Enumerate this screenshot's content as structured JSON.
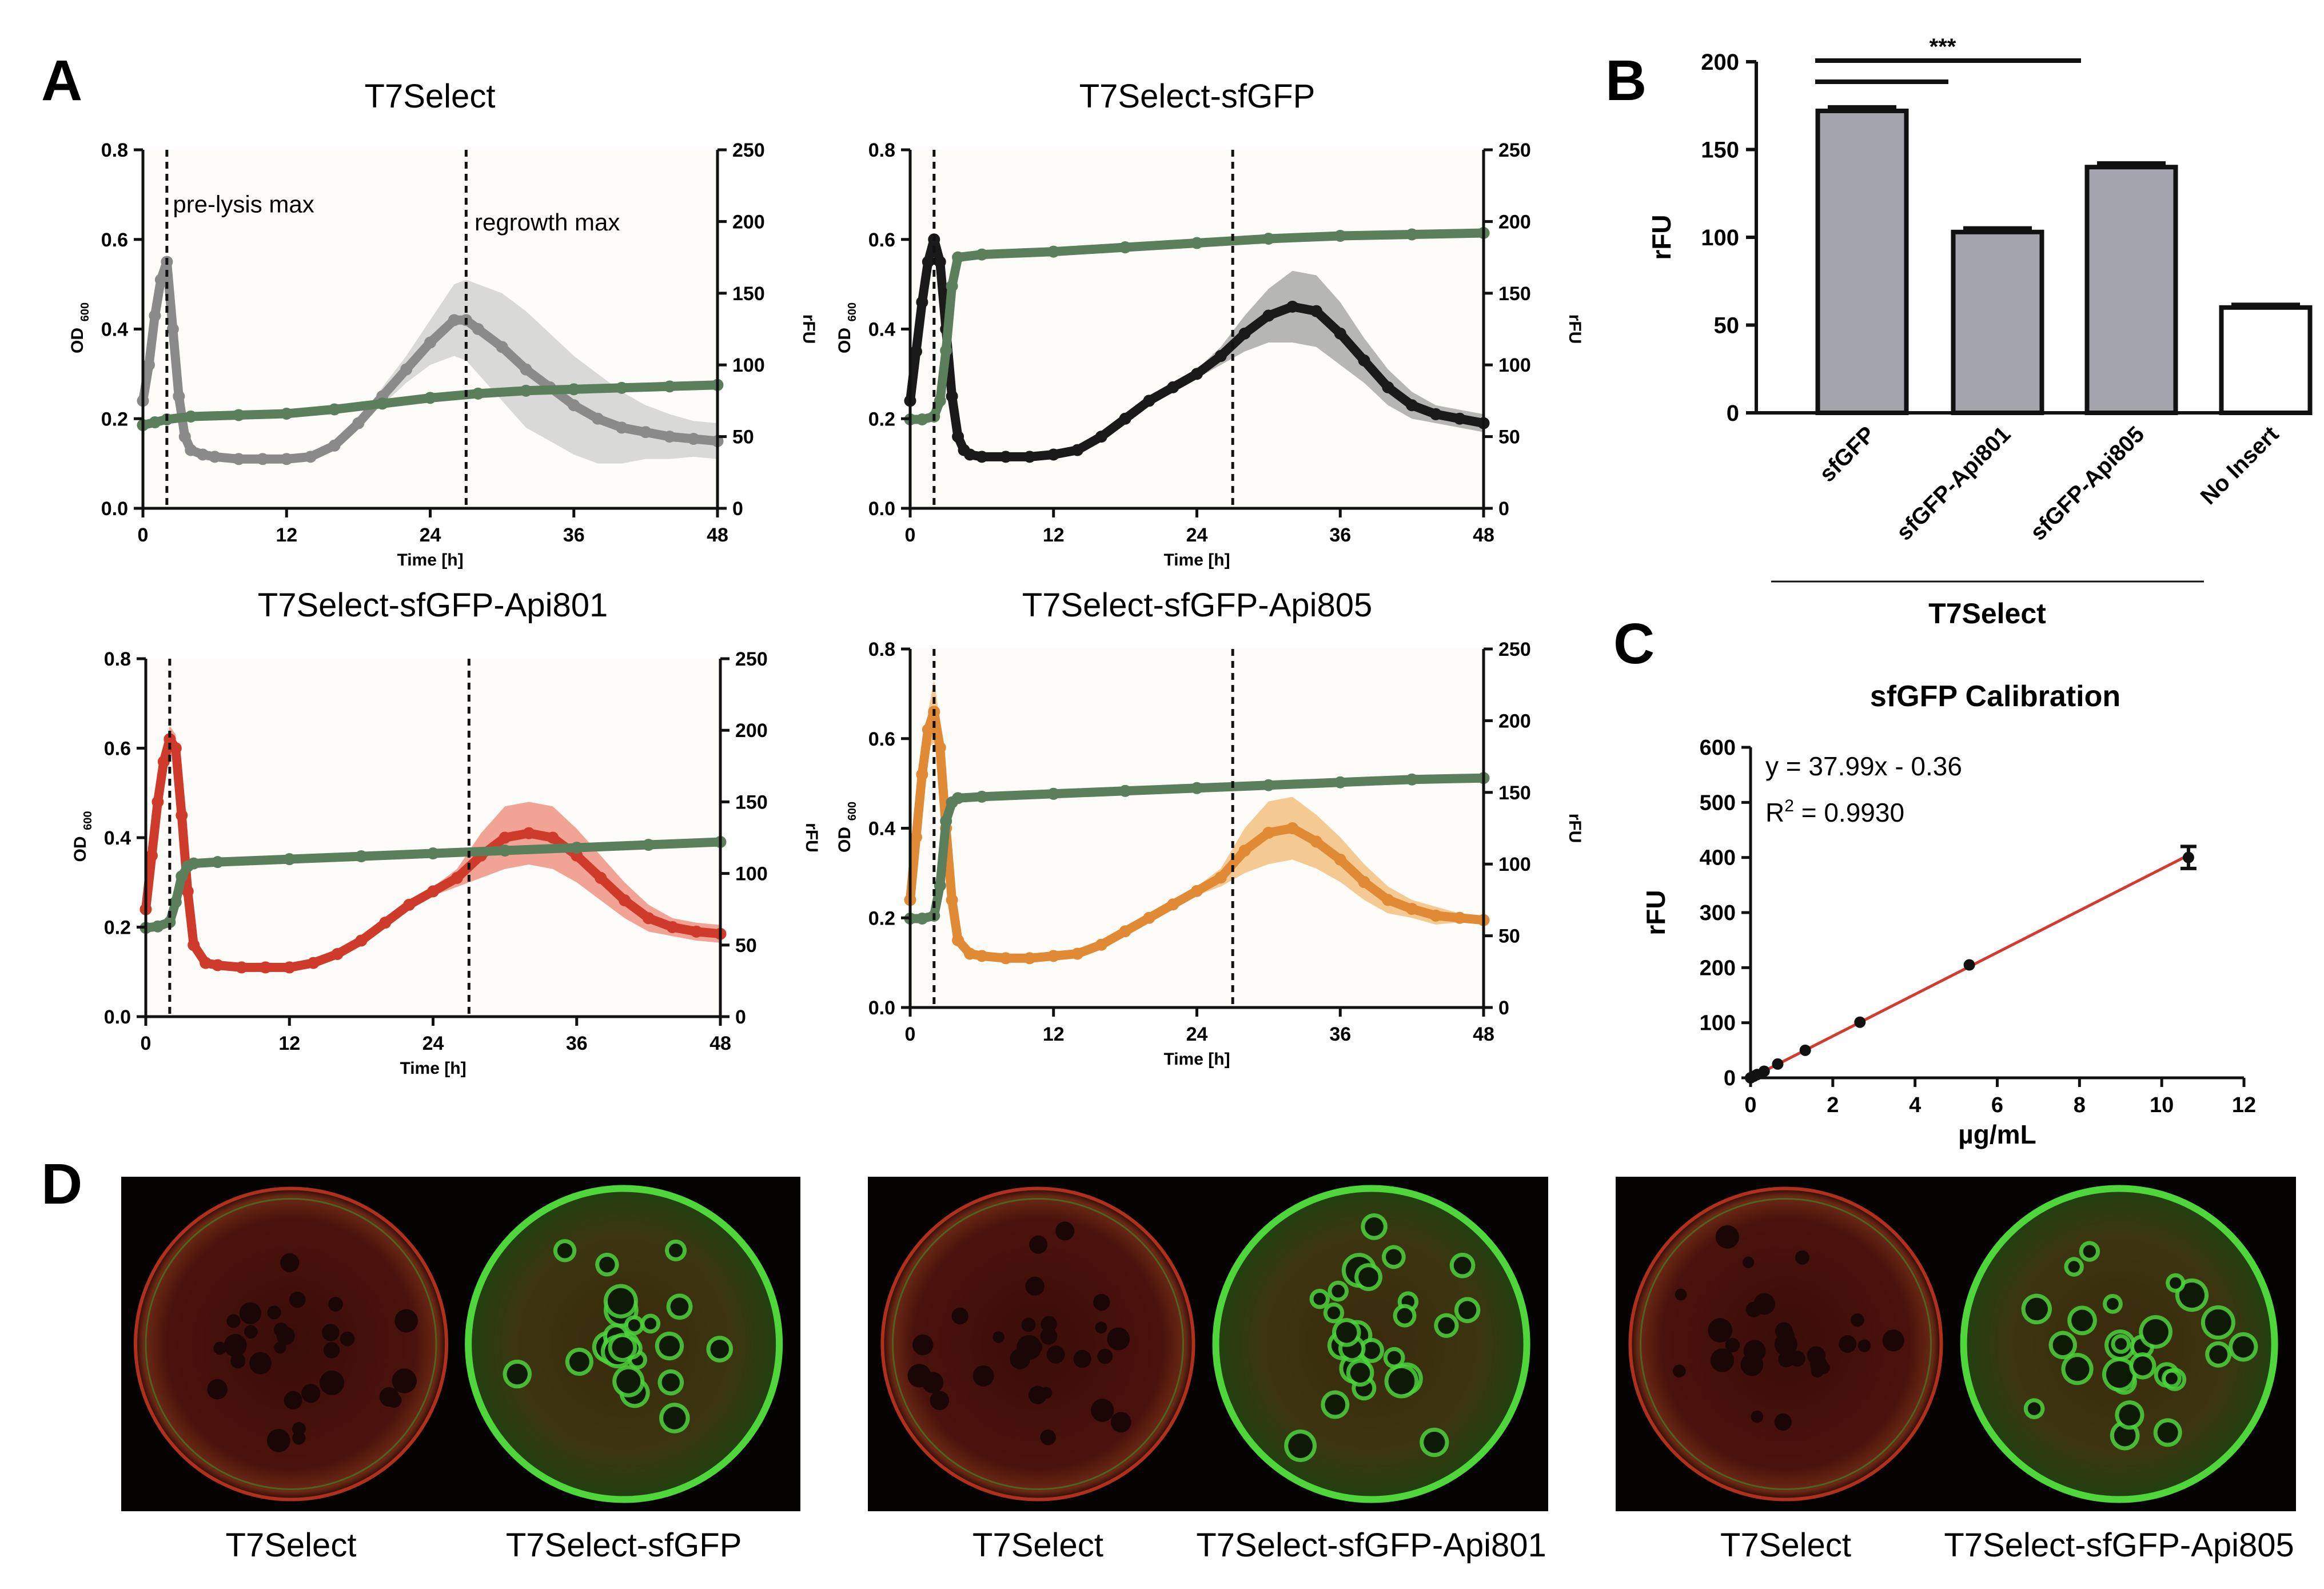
{
  "panel_labels": {
    "a": "A",
    "b": "B",
    "c": "C",
    "d": "D"
  },
  "colors": {
    "grey_od": "#8a8a8a",
    "grey_band": "#d2d2d2",
    "green_rfu": "#5b7f5b",
    "black_od": "#1a1a1a",
    "dark_band": "#a9a9a9",
    "red_od": "#cf3b2b",
    "red_band": "#ee9484",
    "red_dark": "#8a3a33",
    "orange_od": "#e08a35",
    "orange_band": "#f3bf80",
    "orange_dark": "#b87a3e",
    "bar_grey": "#a4a4ac",
    "bar_white": "#ffffff",
    "fit_line": "#d43a30"
  },
  "chart_data": [
    {
      "id": "a1",
      "type": "line",
      "title": "T7Select",
      "xlabel": "Time [h]",
      "ylabel_left": "OD",
      "ylabel_left_sub": "600",
      "ylabel_right": "rFU",
      "xlim": [
        0,
        48
      ],
      "xticks": [
        "0",
        "12",
        "24",
        "36",
        "48"
      ],
      "ylim_left": [
        0,
        0.8
      ],
      "yticks_left": [
        "0.0",
        "0.2",
        "0.4",
        "0.6",
        "0.8"
      ],
      "ylim_right": [
        0,
        250
      ],
      "yticks_right": [
        "0",
        "50",
        "100",
        "150",
        "200",
        "250"
      ],
      "vlines": [
        2,
        27
      ],
      "annotations": [
        {
          "text": "pre-lysis max",
          "x": 2.5,
          "y": 0.66
        },
        {
          "text": "regrowth max",
          "x": 27.7,
          "y": 0.62
        }
      ],
      "series": [
        {
          "axis": "left",
          "color_key": "grey_od",
          "band_key": "grey_band",
          "x": [
            0,
            0.5,
            1,
            1.5,
            2,
            2.5,
            3,
            3.5,
            4,
            5,
            6,
            8,
            10,
            12,
            14,
            16,
            18,
            20,
            22,
            24,
            26,
            27,
            28,
            30,
            32,
            34,
            36,
            38,
            40,
            42,
            44,
            46,
            48
          ],
          "y": [
            0.24,
            0.32,
            0.43,
            0.51,
            0.55,
            0.4,
            0.25,
            0.16,
            0.13,
            0.12,
            0.115,
            0.11,
            0.11,
            0.11,
            0.115,
            0.14,
            0.19,
            0.25,
            0.31,
            0.37,
            0.42,
            0.42,
            0.4,
            0.36,
            0.31,
            0.27,
            0.23,
            0.2,
            0.18,
            0.17,
            0.16,
            0.155,
            0.15
          ],
          "err": [
            0,
            0,
            0,
            0,
            0,
            0,
            0,
            0,
            0,
            0,
            0,
            0,
            0,
            0,
            0,
            0,
            0,
            0.02,
            0.03,
            0.05,
            0.08,
            0.09,
            0.1,
            0.12,
            0.13,
            0.12,
            0.11,
            0.1,
            0.08,
            0.06,
            0.05,
            0.04,
            0.04
          ]
        },
        {
          "axis": "right",
          "color_key": "green_rfu",
          "x": [
            0,
            1,
            2,
            4,
            8,
            12,
            16,
            20,
            24,
            28,
            32,
            36,
            40,
            44,
            48
          ],
          "y": [
            58,
            60,
            62,
            64,
            65,
            66,
            69,
            73,
            77,
            80,
            82,
            83,
            84,
            85,
            86
          ],
          "err": [
            0,
            0,
            0,
            0,
            0,
            0,
            0,
            0,
            0,
            0,
            0,
            0,
            0,
            0,
            0
          ]
        }
      ]
    },
    {
      "id": "a2",
      "type": "line",
      "title": "T7Select-sfGFP",
      "xlabel": "Time [h]",
      "ylabel_left": "OD",
      "ylabel_left_sub": "600",
      "ylabel_right": "rFU",
      "xlim": [
        0,
        48
      ],
      "xticks": [
        "0",
        "12",
        "24",
        "36",
        "48"
      ],
      "ylim_left": [
        0,
        0.8
      ],
      "yticks_left": [
        "0.0",
        "0.2",
        "0.4",
        "0.6",
        "0.8"
      ],
      "ylim_right": [
        0,
        250
      ],
      "yticks_right": [
        "0",
        "50",
        "100",
        "150",
        "200",
        "250"
      ],
      "vlines": [
        2,
        27
      ],
      "annotations": [],
      "series": [
        {
          "axis": "left",
          "color_key": "black_od",
          "band_key": "dark_band",
          "x": [
            0,
            0.5,
            1,
            1.5,
            2,
            2.5,
            3,
            3.5,
            4,
            4.5,
            5,
            6,
            8,
            10,
            12,
            14,
            16,
            18,
            20,
            22,
            24,
            26,
            28,
            30,
            32,
            34,
            36,
            38,
            40,
            42,
            44,
            46,
            48
          ],
          "y": [
            0.24,
            0.35,
            0.46,
            0.55,
            0.6,
            0.55,
            0.4,
            0.25,
            0.16,
            0.13,
            0.12,
            0.115,
            0.115,
            0.115,
            0.12,
            0.13,
            0.16,
            0.2,
            0.24,
            0.27,
            0.3,
            0.34,
            0.39,
            0.43,
            0.45,
            0.44,
            0.39,
            0.33,
            0.27,
            0.23,
            0.21,
            0.2,
            0.19
          ],
          "err": [
            0,
            0,
            0,
            0,
            0,
            0,
            0,
            0,
            0,
            0,
            0,
            0,
            0,
            0,
            0,
            0,
            0,
            0,
            0,
            0,
            0.01,
            0.02,
            0.04,
            0.06,
            0.08,
            0.08,
            0.07,
            0.05,
            0.04,
            0.03,
            0.02,
            0.02,
            0.02
          ]
        },
        {
          "axis": "right",
          "color_key": "green_rfu",
          "x": [
            0,
            1,
            2,
            2.5,
            3,
            3.5,
            4,
            6,
            12,
            18,
            24,
            30,
            36,
            42,
            48
          ],
          "y": [
            62,
            62,
            64,
            75,
            110,
            155,
            175,
            177,
            179,
            182,
            185,
            188,
            190,
            191,
            192
          ],
          "err": [
            0,
            0,
            0,
            0,
            0,
            0,
            0,
            0,
            0,
            0,
            0,
            0,
            0,
            0,
            0
          ]
        }
      ]
    },
    {
      "id": "a3",
      "type": "line",
      "title": "T7Select-sfGFP-Api801",
      "xlabel": "Time [h]",
      "ylabel_left": "OD",
      "ylabel_left_sub": "600",
      "ylabel_right": "rFU",
      "xlim": [
        0,
        48
      ],
      "xticks": [
        "0",
        "12",
        "24",
        "36",
        "48"
      ],
      "ylim_left": [
        0,
        0.8
      ],
      "yticks_left": [
        "0.0",
        "0.2",
        "0.4",
        "0.6",
        "0.8"
      ],
      "ylim_right": [
        0,
        250
      ],
      "yticks_right": [
        "0",
        "50",
        "100",
        "150",
        "200",
        "250"
      ],
      "vlines": [
        2,
        27
      ],
      "annotations": [],
      "series": [
        {
          "axis": "left",
          "color_key": "red_od",
          "band_key": "red_band",
          "x": [
            0,
            0.5,
            1,
            1.5,
            2,
            2.5,
            3,
            3.5,
            4,
            5,
            6,
            8,
            10,
            12,
            14,
            16,
            18,
            20,
            22,
            24,
            26,
            28,
            30,
            32,
            34,
            36,
            38,
            40,
            42,
            44,
            46,
            48
          ],
          "y": [
            0.24,
            0.36,
            0.48,
            0.57,
            0.62,
            0.6,
            0.45,
            0.28,
            0.16,
            0.12,
            0.115,
            0.11,
            0.11,
            0.11,
            0.12,
            0.14,
            0.17,
            0.21,
            0.25,
            0.28,
            0.31,
            0.36,
            0.4,
            0.41,
            0.4,
            0.36,
            0.31,
            0.26,
            0.22,
            0.2,
            0.19,
            0.185
          ],
          "err": [
            0,
            0,
            0.01,
            0.02,
            0.03,
            0.03,
            0.02,
            0.01,
            0,
            0,
            0,
            0,
            0,
            0,
            0,
            0,
            0,
            0,
            0,
            0.01,
            0.02,
            0.05,
            0.07,
            0.07,
            0.07,
            0.06,
            0.05,
            0.04,
            0.03,
            0.02,
            0.02,
            0.02
          ]
        },
        {
          "axis": "right",
          "color_key": "green_rfu",
          "x": [
            0,
            1,
            2,
            2.5,
            3,
            3.5,
            4,
            6,
            12,
            18,
            24,
            30,
            36,
            42,
            48
          ],
          "y": [
            62,
            63,
            66,
            80,
            98,
            105,
            107,
            108,
            110,
            112,
            114,
            116,
            118,
            120,
            122
          ],
          "err": [
            0,
            0,
            0,
            0,
            0,
            0,
            0,
            0,
            0,
            0,
            0,
            0,
            0,
            0,
            0
          ]
        }
      ]
    },
    {
      "id": "a4",
      "type": "line",
      "title": "T7Select-sfGFP-Api805",
      "xlabel": "Time [h]",
      "ylabel_left": "OD",
      "ylabel_left_sub": "600",
      "ylabel_right": "rFU",
      "xlim": [
        0,
        48
      ],
      "xticks": [
        "0",
        "12",
        "24",
        "36",
        "48"
      ],
      "ylim_left": [
        0,
        0.8
      ],
      "yticks_left": [
        "0.0",
        "0.2",
        "0.4",
        "0.6",
        "0.8"
      ],
      "ylim_right": [
        0,
        250
      ],
      "yticks_right": [
        "0",
        "50",
        "100",
        "150",
        "200",
        "250"
      ],
      "vlines": [
        2,
        27
      ],
      "annotations": [],
      "series": [
        {
          "axis": "left",
          "color_key": "orange_od",
          "band_key": "orange_band",
          "x": [
            0,
            0.5,
            1,
            1.5,
            2,
            2.5,
            3,
            3.5,
            4,
            5,
            6,
            8,
            10,
            12,
            14,
            16,
            18,
            20,
            22,
            24,
            26,
            28,
            30,
            32,
            34,
            36,
            38,
            40,
            42,
            44,
            46,
            48
          ],
          "y": [
            0.24,
            0.38,
            0.52,
            0.62,
            0.66,
            0.58,
            0.4,
            0.24,
            0.15,
            0.12,
            0.115,
            0.11,
            0.11,
            0.115,
            0.12,
            0.14,
            0.17,
            0.2,
            0.23,
            0.26,
            0.29,
            0.35,
            0.39,
            0.4,
            0.37,
            0.33,
            0.28,
            0.24,
            0.22,
            0.205,
            0.2,
            0.195
          ],
          "err": [
            0,
            0,
            0.02,
            0.04,
            0.07,
            0.06,
            0.04,
            0.02,
            0,
            0,
            0,
            0,
            0,
            0,
            0,
            0,
            0,
            0,
            0,
            0.01,
            0.02,
            0.05,
            0.07,
            0.07,
            0.06,
            0.05,
            0.04,
            0.03,
            0.02,
            0.02,
            0.01,
            0.01
          ]
        },
        {
          "axis": "right",
          "color_key": "green_rfu",
          "x": [
            0,
            1,
            2,
            2.5,
            3,
            3.5,
            4,
            6,
            12,
            18,
            24,
            30,
            36,
            42,
            48
          ],
          "y": [
            62,
            62,
            64,
            85,
            130,
            143,
            146,
            147,
            149,
            151,
            153,
            155,
            157,
            159,
            160
          ],
          "err": [
            0,
            0,
            0,
            0,
            0,
            0,
            0,
            0,
            0,
            0,
            0,
            0,
            0,
            0,
            0
          ]
        }
      ]
    },
    {
      "id": "b",
      "type": "bar",
      "ylabel": "rFU",
      "categories": [
        "sfGFP",
        "sfGFP-Api801",
        "sfGFP-Api805",
        "No Insert"
      ],
      "values": [
        172,
        103,
        140,
        60
      ],
      "errors": [
        2,
        2,
        2,
        1.5
      ],
      "fill_keys": [
        "bar_grey",
        "bar_grey",
        "bar_grey",
        "bar_white"
      ],
      "ylim": [
        0,
        200
      ],
      "yticks": [
        "0",
        "50",
        "100",
        "150",
        "200"
      ],
      "group_label": "T7Select",
      "significance": "***"
    },
    {
      "id": "c",
      "type": "scatter",
      "title": "sfGFP Calibration",
      "xlabel": "µg/mL",
      "ylabel": "rFU",
      "xlim": [
        0,
        12
      ],
      "xticks": [
        "0",
        "2",
        "4",
        "6",
        "8",
        "10",
        "12"
      ],
      "ylim": [
        0,
        600
      ],
      "yticks": [
        "0",
        "100",
        "200",
        "300",
        "400",
        "500",
        "600"
      ],
      "x": [
        0,
        0.08,
        0.16,
        0.33,
        0.66,
        1.33,
        2.66,
        5.32,
        10.65
      ],
      "y": [
        0,
        3,
        6,
        12,
        25,
        50,
        101,
        205,
        400
      ],
      "err": [
        0,
        0,
        0,
        0,
        0,
        0,
        0,
        0,
        20
      ],
      "fit": {
        "slope": 37.99,
        "intercept": -0.36
      },
      "equation": "y = 37.99x - 0.36",
      "r2_prefix": "R",
      "r2_sup": "2",
      "r2_value": " = 0.9930"
    }
  ],
  "plates": {
    "groups": [
      {
        "labels": [
          "T7Select",
          "T7Select-sfGFP"
        ]
      },
      {
        "labels": [
          "T7Select",
          "T7Select-sfGFP-Api801"
        ]
      },
      {
        "labels": [
          "T7Select",
          "T7Select-sfGFP-Api805"
        ]
      }
    ]
  }
}
